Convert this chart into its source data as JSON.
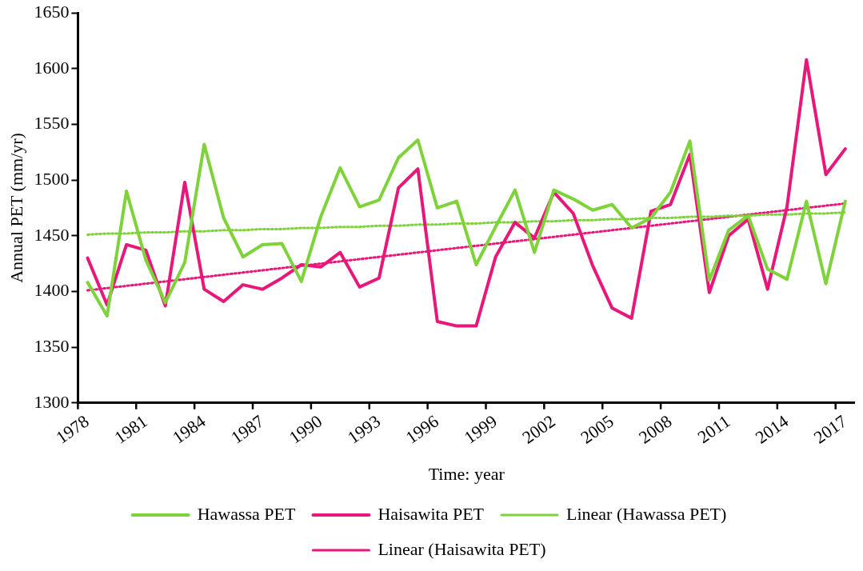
{
  "chart_data": {
    "type": "line",
    "xlabel": "Time: year",
    "ylabel": "Annual PET (mm/yr)",
    "categories": [
      "1978",
      null,
      null,
      "1981",
      null,
      null,
      "1984",
      null,
      null,
      "1987",
      null,
      null,
      "1990",
      null,
      null,
      "1993",
      null,
      null,
      "1996",
      null,
      null,
      "1999",
      null,
      null,
      "2002",
      null,
      null,
      "2005",
      null,
      null,
      "2008",
      null,
      null,
      "2011",
      null,
      null,
      "2014",
      null,
      null,
      "2017"
    ],
    "series": [
      {
        "name": "Hawassa PET",
        "color": "#7ed23a",
        "line_style": "solid",
        "values": [
          1408,
          1378,
          1490,
          1428,
          1390,
          1426,
          1532,
          1466,
          1431,
          1442,
          1443,
          1409,
          1467,
          1511,
          1476,
          1482,
          1520,
          1536,
          1475,
          1481,
          1424,
          1458,
          1491,
          1435,
          1491,
          1483,
          1473,
          1478,
          1457,
          1466,
          1489,
          1535,
          1410,
          1455,
          1468,
          1420,
          1411,
          1481,
          1407,
          1481
        ]
      },
      {
        "name": "Haisawita PET",
        "color": "#e8177a",
        "line_style": "solid",
        "values": [
          1430,
          1388,
          1442,
          1437,
          1387,
          1498,
          1402,
          1391,
          1406,
          1402,
          1412,
          1424,
          1422,
          1435,
          1404,
          1412,
          1493,
          1510,
          1373,
          1369,
          1369,
          1431,
          1462,
          1448,
          1489,
          1470,
          1423,
          1385,
          1376,
          1472,
          1478,
          1523,
          1399,
          1450,
          1465,
          1402,
          1476,
          1608,
          1505,
          1528
        ]
      },
      {
        "name": "Linear (Hawassa PET)",
        "type": "line",
        "color": "#7ed23a",
        "line_style": "dotted",
        "values": [
          1451,
          1452,
          1452,
          1453,
          1453,
          1454,
          1454,
          1455,
          1455,
          1456,
          1456,
          1457,
          1457,
          1458,
          1458,
          1459,
          1459,
          1460,
          1460,
          1461,
          1461,
          1462,
          1462,
          1463,
          1463,
          1464,
          1464,
          1465,
          1465,
          1466,
          1466,
          1467,
          1467,
          1468,
          1468,
          1469,
          1469,
          1470,
          1470,
          1471
        ]
      },
      {
        "name": "Linear (Haisawita PET)",
        "type": "line",
        "color": "#e8177a",
        "line_style": "dotted",
        "values": [
          1401,
          1403,
          1405,
          1407,
          1409,
          1411,
          1413,
          1415,
          1417,
          1419,
          1421,
          1423,
          1425,
          1427,
          1429,
          1431,
          1433,
          1435,
          1437,
          1439,
          1441,
          1443,
          1445,
          1447,
          1449,
          1451,
          1453,
          1455,
          1457,
          1459,
          1461,
          1463,
          1465,
          1467,
          1469,
          1471,
          1473,
          1475,
          1477,
          1479
        ]
      }
    ],
    "ylim": [
      1300,
      1650
    ],
    "yticks": [
      1300,
      1350,
      1400,
      1450,
      1500,
      1550,
      1600,
      1650
    ],
    "grid": false,
    "legend": "bottom",
    "marker": "none"
  }
}
